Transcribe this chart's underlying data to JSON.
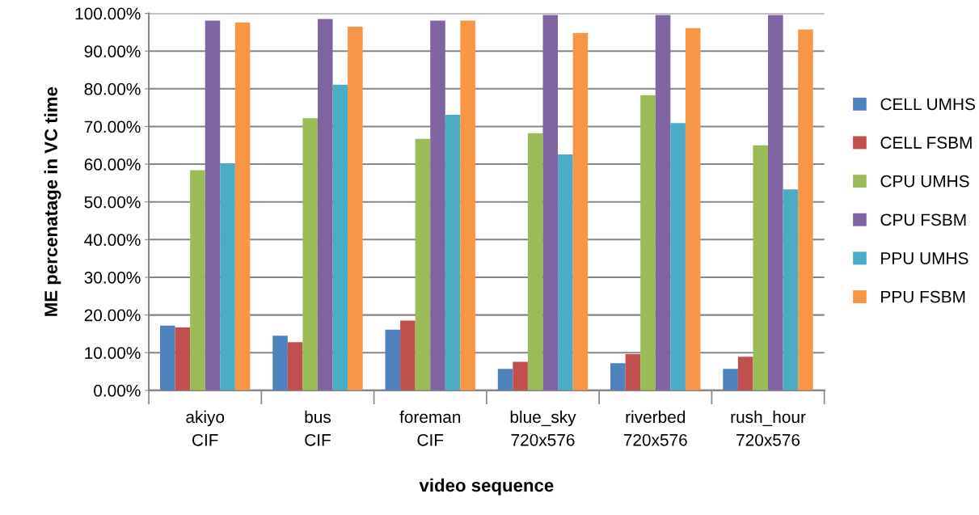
{
  "chart_data": {
    "type": "bar",
    "xlabel": "video sequence",
    "ylabel": "ME percenatage in VC time",
    "categories": [
      "akiyo\nCIF",
      "bus\nCIF",
      "foreman\nCIF",
      "blue_sky\n720x576",
      "riverbed\n720x576",
      "rush_hour\n720x576"
    ],
    "series": [
      {
        "name": "CELL UMHS",
        "color": "#4f81bd",
        "values": [
          17.2,
          14.5,
          16.1,
          5.7,
          7.2,
          5.7
        ]
      },
      {
        "name": "CELL FSBM",
        "color": "#c0504d",
        "values": [
          16.7,
          12.8,
          18.5,
          7.6,
          9.6,
          8.9
        ]
      },
      {
        "name": "CPU UMHS",
        "color": "#9bbb59",
        "values": [
          58.4,
          72.2,
          66.7,
          68.2,
          78.3,
          65.0
        ]
      },
      {
        "name": "CPU FSBM",
        "color": "#8064a2",
        "values": [
          98.1,
          98.5,
          98.1,
          99.6,
          99.6,
          99.6
        ]
      },
      {
        "name": "PPU UMHS",
        "color": "#4bacc6",
        "values": [
          60.1,
          81.1,
          73.1,
          62.6,
          70.9,
          53.3
        ]
      },
      {
        "name": "PPU FSBM",
        "color": "#f79646",
        "values": [
          97.6,
          96.5,
          98.1,
          94.8,
          96.1,
          95.7
        ]
      }
    ],
    "ylim": [
      0,
      100
    ],
    "yticks": [
      {
        "value": 0,
        "label": "0.00%"
      },
      {
        "value": 10,
        "label": "10.00%"
      },
      {
        "value": 20,
        "label": "20.00%"
      },
      {
        "value": 30,
        "label": "30.00%"
      },
      {
        "value": 40,
        "label": "40.00%"
      },
      {
        "value": 50,
        "label": "50.00%"
      },
      {
        "value": 60,
        "label": "60.00%"
      },
      {
        "value": 70,
        "label": "70.00%"
      },
      {
        "value": 80,
        "label": "80.00%"
      },
      {
        "value": 90,
        "label": "90.00%"
      },
      {
        "value": 100,
        "label": "100.00%"
      }
    ],
    "grid": "y",
    "legend": "right"
  }
}
